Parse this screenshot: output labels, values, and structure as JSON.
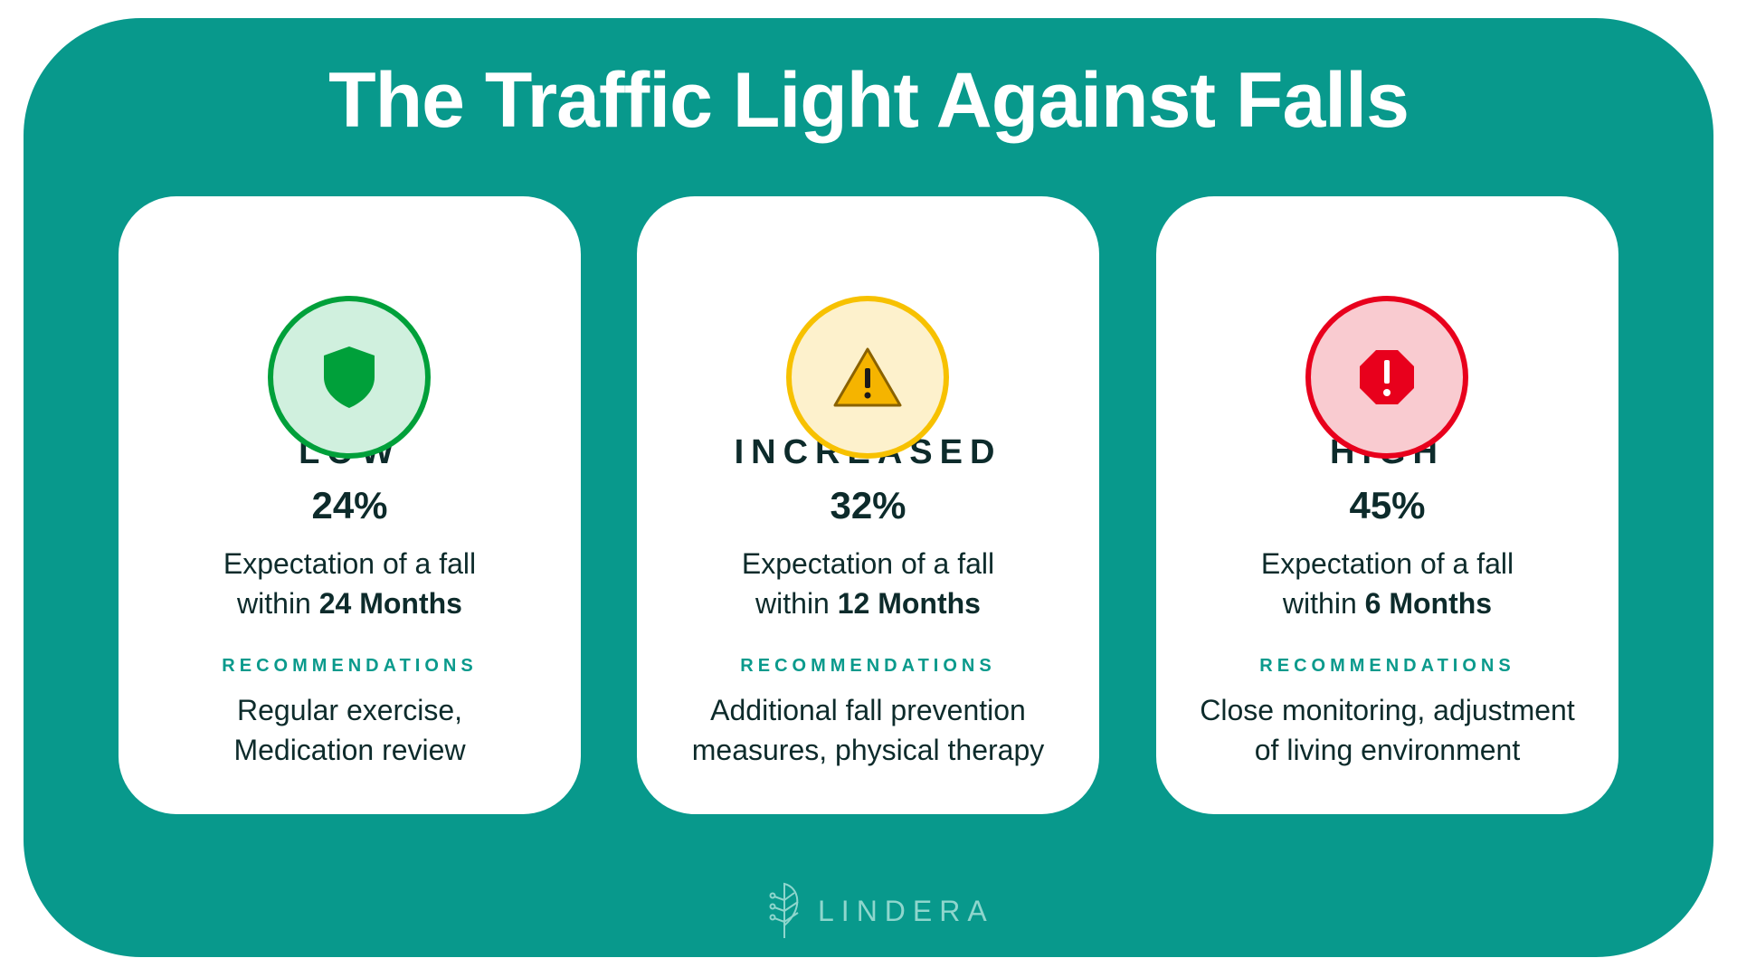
{
  "title": "The Traffic Light Against Falls",
  "cards": [
    {
      "level": "LOW",
      "icon": "shield-icon",
      "percent": "24%",
      "exp_line1": "Expectation of a fall",
      "exp_prefix": "within ",
      "exp_bold": "24 Months",
      "rec_heading": "RECOMMENDATIONS",
      "rec_line1": "Regular exercise,",
      "rec_line2": "Medication review",
      "color": "#00a03a",
      "bg": "#d0f0de"
    },
    {
      "level": "INCREASED",
      "icon": "warning-icon",
      "percent": "32%",
      "exp_line1": "Expectation of a fall",
      "exp_prefix": "within ",
      "exp_bold": "12 Months",
      "rec_heading": "RECOMMENDATIONS",
      "rec_line1": "Additional fall prevention",
      "rec_line2": "measures, physical therapy",
      "color": "#f7c100",
      "bg": "#fdf1cc"
    },
    {
      "level": "HIGH",
      "icon": "stop-alert-icon",
      "percent": "45%",
      "exp_line1": "Expectation of a fall",
      "exp_prefix": "within ",
      "exp_bold": "6 Months",
      "rec_heading": "RECOMMENDATIONS",
      "rec_line1": "Close monitoring, adjustment",
      "rec_line2": "of living environment",
      "color": "#e8001c",
      "bg": "#f9cbd0"
    }
  ],
  "logo": "LINDERA"
}
